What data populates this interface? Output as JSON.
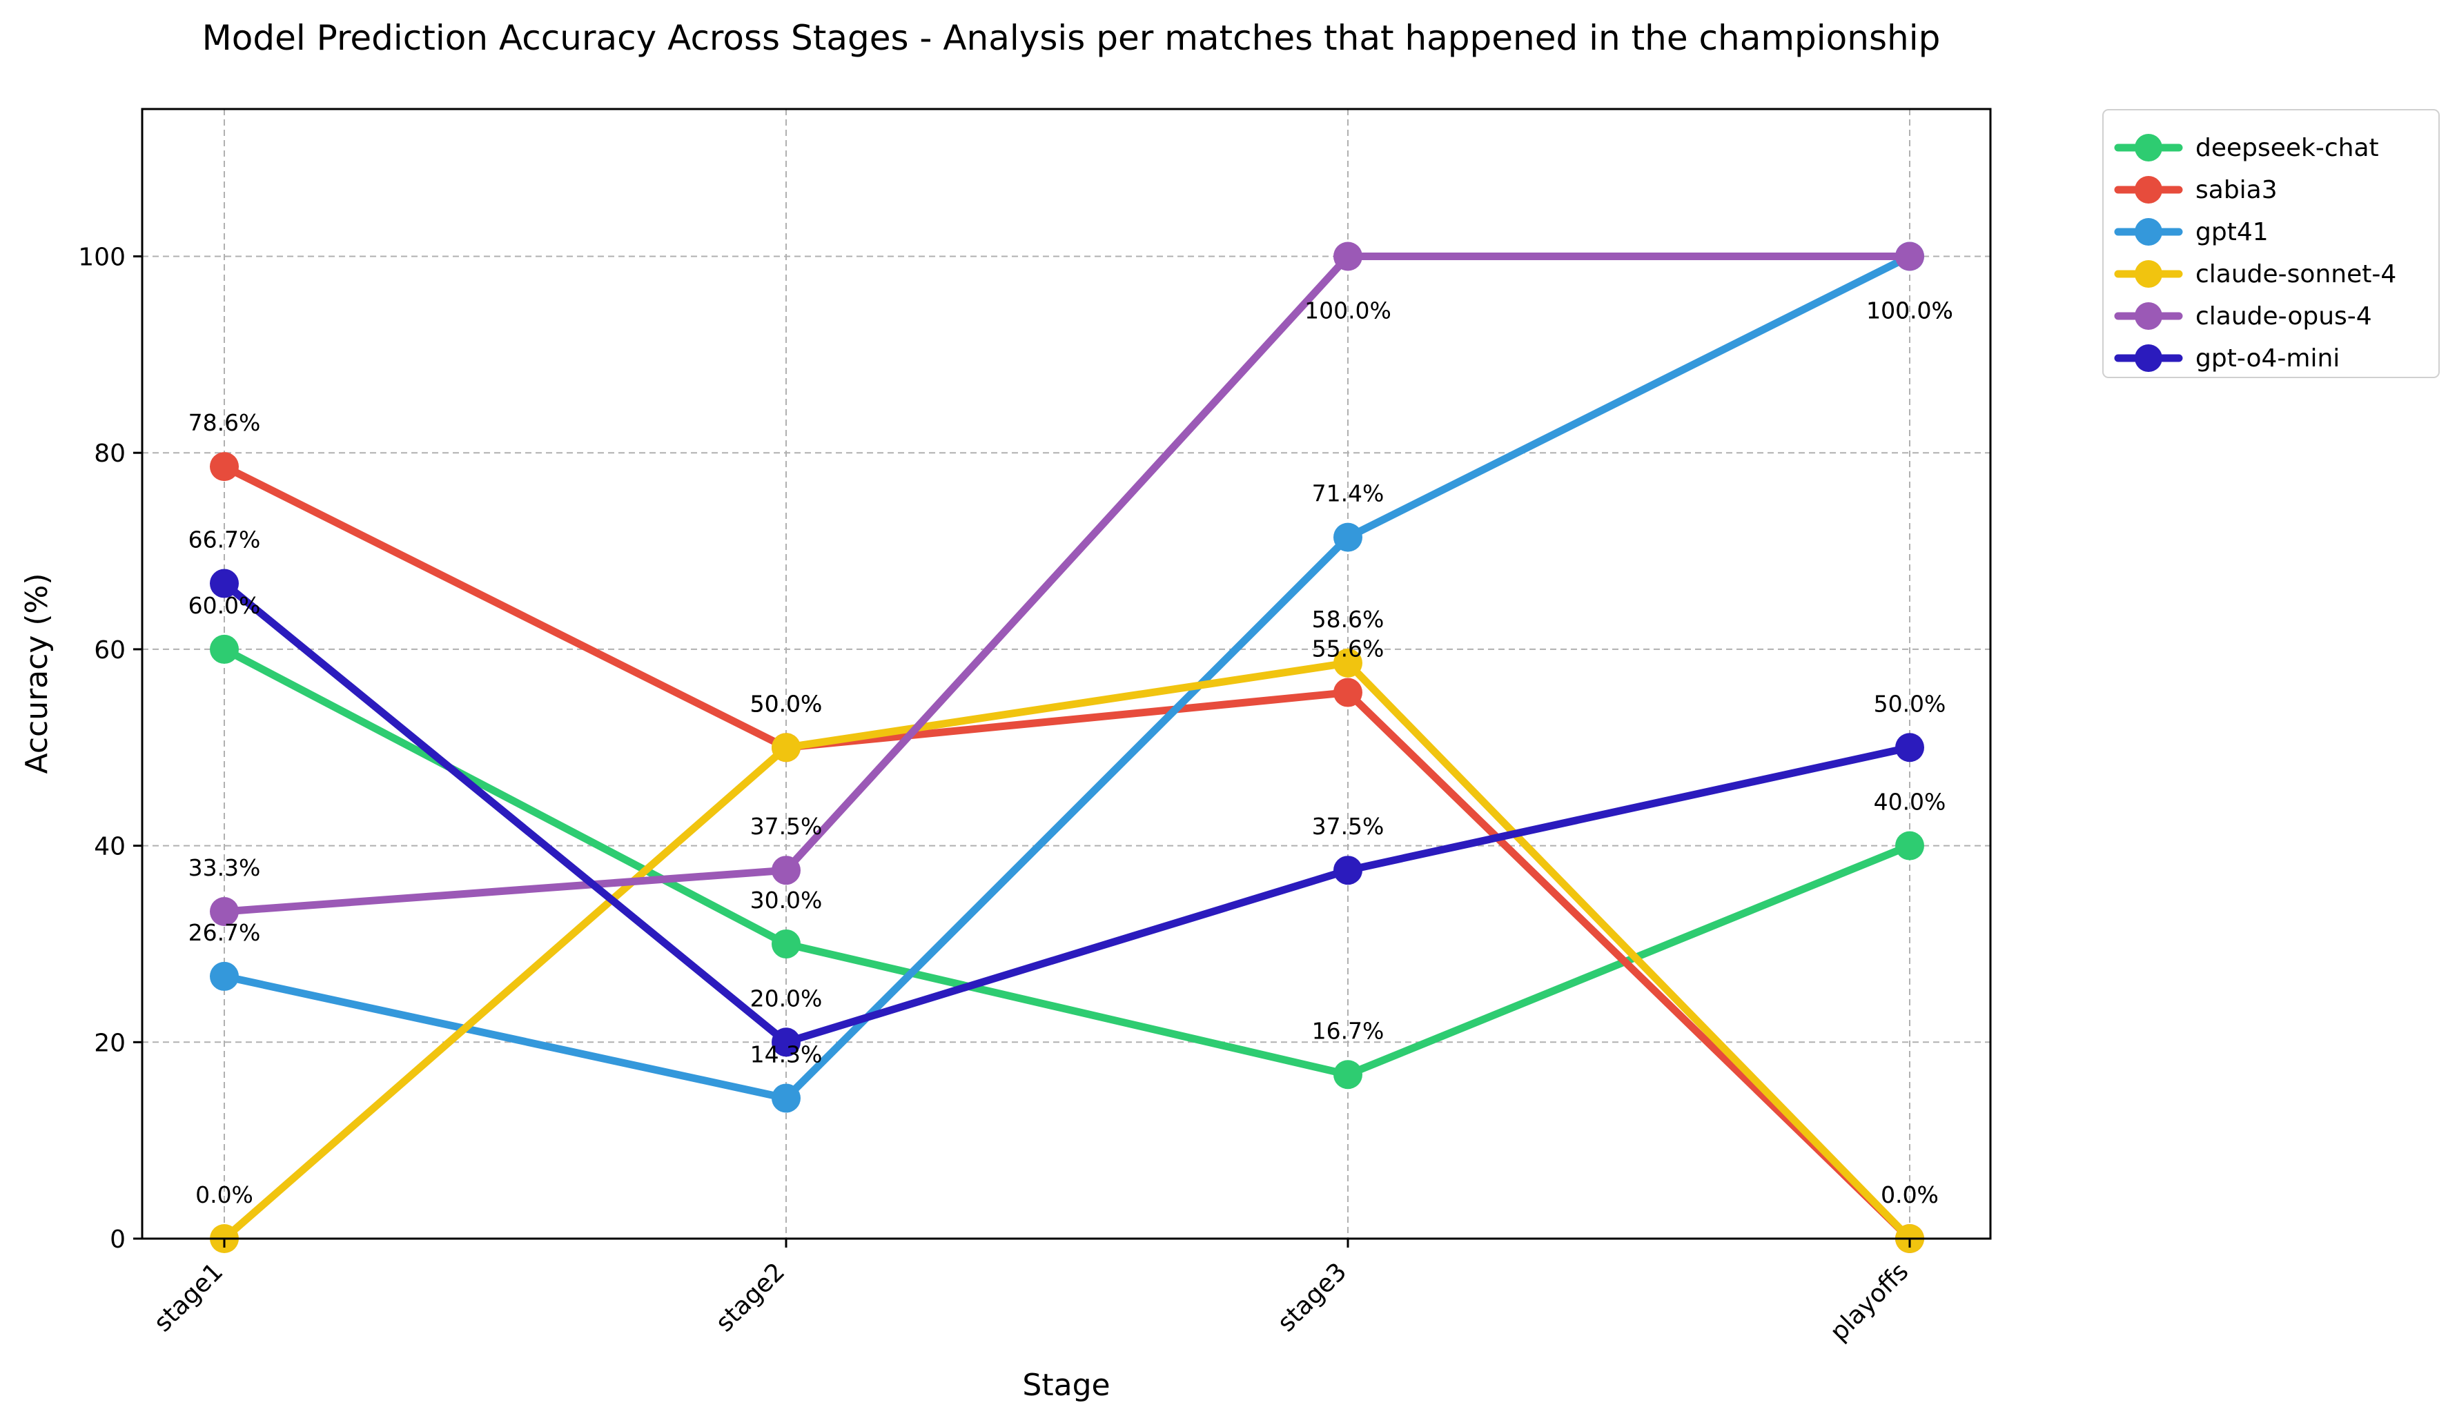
{
  "chart_data": {
    "type": "line",
    "title": "Model Prediction Accuracy Across Stages - Analysis per matches that happened in the championship",
    "xlabel": "Stage",
    "ylabel": "Accuracy (%)",
    "categories": [
      "stage1",
      "stage2",
      "stage3",
      "playoffs"
    ],
    "ylim": [
      0,
      115
    ],
    "yticks": [
      0,
      20,
      40,
      60,
      80,
      100
    ],
    "grid": true,
    "legend_position": "outside-top-right",
    "value_label_suffix": "%",
    "series": [
      {
        "name": "deepseek-chat",
        "color": "#2ecc71",
        "values": [
          60.0,
          30.0,
          16.7,
          40.0
        ]
      },
      {
        "name": "sabia3",
        "color": "#e74c3c",
        "values": [
          78.6,
          50.0,
          55.6,
          0.0
        ]
      },
      {
        "name": "gpt41",
        "color": "#3498db",
        "values": [
          26.7,
          14.3,
          71.4,
          100.0
        ]
      },
      {
        "name": "claude-sonnet-4",
        "color": "#f1c40f",
        "values": [
          0.0,
          50.0,
          58.6,
          0.0
        ]
      },
      {
        "name": "claude-opus-4",
        "color": "#9b59b6",
        "values": [
          33.3,
          37.5,
          100.0,
          100.0
        ]
      },
      {
        "name": "gpt-o4-mini",
        "color": "#2b1bbd",
        "values": [
          66.7,
          20.0,
          37.5,
          50.0
        ]
      }
    ]
  }
}
